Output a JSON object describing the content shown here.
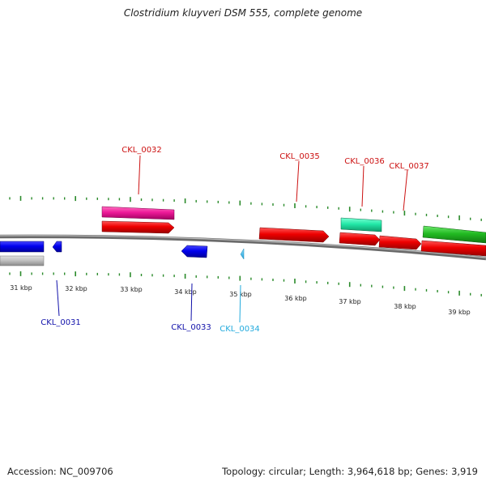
{
  "title": "Clostridium kluyveri DSM 555, complete genome",
  "footer": {
    "accession": "Accession: NC_009706",
    "info": "Topology: circular; Length: 3,964,618 bp; Genes: 3,919"
  },
  "colors": {
    "axis": "#8c8c8c",
    "tick": "#2a8a2a",
    "forward_label": "#cc1111",
    "reverse_label": "#1111aa",
    "cyan_label": "#22aadd"
  },
  "scale": {
    "unit": "kbp",
    "labels": [
      "31 kbp",
      "32 kbp",
      "33 kbp",
      "34 kbp",
      "35 kbp",
      "36 kbp",
      "37 kbp",
      "38 kbp",
      "39 kbp"
    ]
  },
  "genes": [
    {
      "name": "CKL_0031",
      "color": "#1111aa",
      "label_color": "#1111aa"
    },
    {
      "name": "CKL_0032",
      "color": "#cc1111",
      "label_color": "#cc1111"
    },
    {
      "name": "CKL_0033",
      "color": "#1111aa",
      "label_color": "#1111aa"
    },
    {
      "name": "CKL_0034",
      "color": "#22aadd",
      "label_color": "#22aadd"
    },
    {
      "name": "CKL_0035",
      "color": "#cc1111",
      "label_color": "#cc1111"
    },
    {
      "name": "CKL_0036",
      "color": "#cc1111",
      "label_color": "#cc1111"
    },
    {
      "name": "CKL_0037",
      "color": "#cc1111",
      "label_color": "#cc1111"
    }
  ]
}
